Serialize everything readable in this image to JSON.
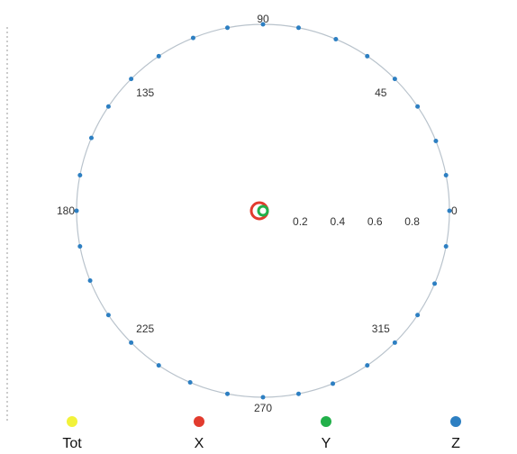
{
  "chart_data": {
    "type": "polar-scatter",
    "angle_ticks": [
      "90",
      "45",
      "0",
      "315",
      "270",
      "225",
      "180",
      "135"
    ],
    "angle_tick_values": [
      90,
      45,
      0,
      315,
      270,
      225,
      180,
      135
    ],
    "radial_ticks": [
      "0.2",
      "0.4",
      "0.6",
      "0.8"
    ],
    "radial_tick_values": [
      0.2,
      0.4,
      0.6,
      0.8
    ],
    "rlim": [
      0,
      1
    ],
    "legend_position": "bottom",
    "series": [
      {
        "name": "Tot",
        "color": "#f2f23a",
        "r": [],
        "theta": []
      },
      {
        "name": "X",
        "color": "#e23b2e",
        "ring": true,
        "r": [
          0.0
        ],
        "theta": [
          0
        ]
      },
      {
        "name": "Y",
        "color": "#22b04a",
        "r": [
          0.0
        ],
        "theta": [
          0
        ]
      },
      {
        "name": "Z",
        "color": "#2d7fc2",
        "r": [
          1,
          1,
          1,
          1,
          1,
          1,
          1,
          1,
          1,
          1,
          1,
          1,
          1,
          1,
          1,
          1,
          1,
          1,
          1,
          1,
          1,
          1,
          1,
          1,
          1,
          1,
          1,
          1,
          1,
          1,
          1,
          1
        ],
        "theta": [
          0,
          11,
          22,
          34,
          45,
          56,
          67,
          79,
          90,
          101,
          112,
          124,
          135,
          146,
          157,
          169,
          180,
          191,
          202,
          214,
          225,
          236,
          247,
          259,
          270,
          281,
          292,
          304,
          315,
          326,
          337,
          349
        ]
      }
    ]
  }
}
